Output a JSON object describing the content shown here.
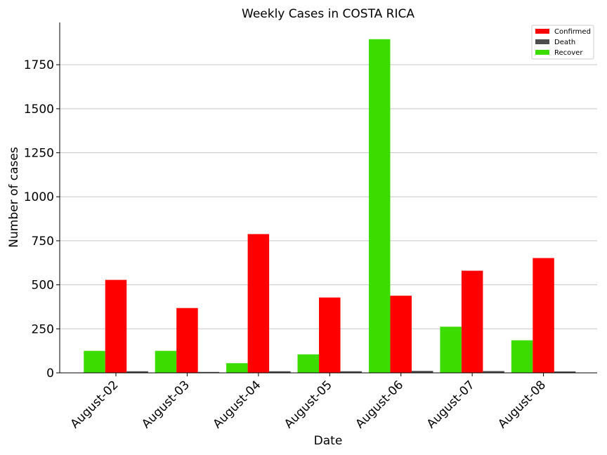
{
  "chart_data": {
    "type": "bar",
    "title": "Weekly Cases in COSTA RICA",
    "xlabel": "Date",
    "ylabel": "Number of cases",
    "categories": [
      "August-02",
      "August-03",
      "August-04",
      "August-05",
      "August-06",
      "August-07",
      "August-08"
    ],
    "series": [
      {
        "name": "Recover",
        "color": "#3ddc00",
        "values": [
          125,
          125,
          55,
          105,
          1895,
          262,
          185
        ]
      },
      {
        "name": "Confirmed",
        "color": "#ff0000",
        "values": [
          528,
          368,
          788,
          428,
          438,
          580,
          652
        ]
      },
      {
        "name": "Death",
        "color": "#4d4d4d",
        "values": [
          9,
          5,
          9,
          9,
          11,
          10,
          8
        ]
      }
    ],
    "legend_order": [
      "Confirmed",
      "Death",
      "Recover"
    ],
    "legend_position": "top-right",
    "ylim": [
      0,
      1990
    ],
    "yticks": [
      0,
      250,
      500,
      750,
      1000,
      1250,
      1500,
      1750
    ],
    "grid": "horizontal"
  }
}
